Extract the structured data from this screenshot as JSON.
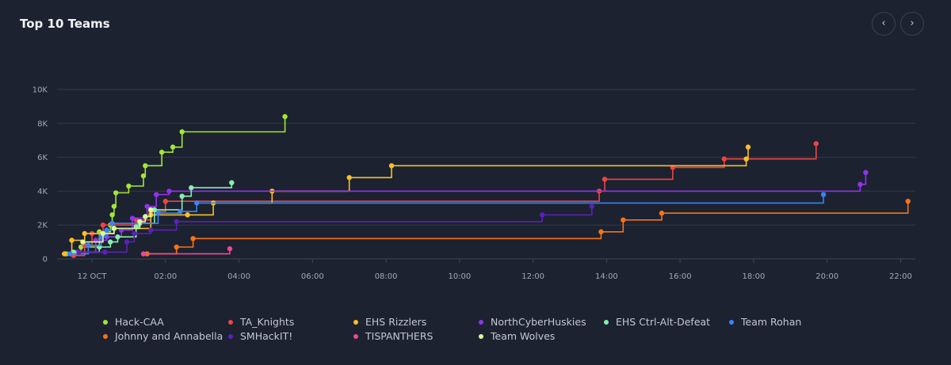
{
  "panel": {
    "title": "Top 10 Teams",
    "prev_icon": "chevron-left-icon",
    "next_icon": "chevron-right-icon",
    "prev_glyph": "‹",
    "next_glyph": "›"
  },
  "chart_data": {
    "type": "line",
    "title": "Top 10 Teams",
    "step": true,
    "grid": true,
    "legend_position": "bottom",
    "x_unit": "time of day (12 Oct)",
    "x_ticks": [
      {
        "value": 0,
        "label": "12 OCT"
      },
      {
        "value": 2,
        "label": "02:00"
      },
      {
        "value": 4,
        "label": "04:00"
      },
      {
        "value": 6,
        "label": "06:00"
      },
      {
        "value": 8,
        "label": "08:00"
      },
      {
        "value": 10,
        "label": "10:00"
      },
      {
        "value": 12,
        "label": "12:00"
      },
      {
        "value": 14,
        "label": "14:00"
      },
      {
        "value": 16,
        "label": "16:00"
      },
      {
        "value": 18,
        "label": "18:00"
      },
      {
        "value": 20,
        "label": "20:00"
      },
      {
        "value": 22,
        "label": "22:00"
      }
    ],
    "xlim": [
      -0.95,
      22.4
    ],
    "y_ticks": [
      {
        "value": 0,
        "label": "0"
      },
      {
        "value": 2000,
        "label": "2K"
      },
      {
        "value": 4000,
        "label": "4K"
      },
      {
        "value": 6000,
        "label": "6K"
      },
      {
        "value": 8000,
        "label": "8K"
      },
      {
        "value": 10000,
        "label": "10K"
      }
    ],
    "ylim": [
      0,
      10000
    ],
    "series": [
      {
        "name": "Hack-CAA",
        "color": "#a3e635",
        "points": [
          [
            -0.7,
            300
          ],
          [
            -0.3,
            700
          ],
          [
            0.2,
            1600
          ],
          [
            0.5,
            2000
          ],
          [
            0.55,
            2600
          ],
          [
            0.6,
            3100
          ],
          [
            0.65,
            3900
          ],
          [
            1.0,
            4300
          ],
          [
            1.4,
            4900
          ],
          [
            1.45,
            5500
          ],
          [
            1.9,
            6300
          ],
          [
            2.2,
            6600
          ],
          [
            2.45,
            7500
          ],
          [
            5.25,
            8400
          ]
        ]
      },
      {
        "name": "TA_Knights",
        "color": "#ef4444",
        "points": [
          [
            -0.5,
            200
          ],
          [
            -0.2,
            800
          ],
          [
            0.0,
            1500
          ],
          [
            0.3,
            2000
          ],
          [
            1.2,
            2300
          ],
          [
            1.6,
            2800
          ],
          [
            2.0,
            3400
          ],
          [
            13.8,
            4000
          ],
          [
            13.95,
            4700
          ],
          [
            15.8,
            5400
          ],
          [
            17.2,
            5900
          ],
          [
            19.7,
            6800
          ]
        ]
      },
      {
        "name": "EHS Rizzlers",
        "color": "#fbbf24",
        "points": [
          [
            -0.75,
            300
          ],
          [
            -0.55,
            1100
          ],
          [
            -0.2,
            1500
          ],
          [
            0.6,
            1800
          ],
          [
            1.6,
            2600
          ],
          [
            2.6,
            2600
          ],
          [
            3.3,
            3300
          ],
          [
            4.9,
            4000
          ],
          [
            7.0,
            4800
          ],
          [
            8.15,
            5500
          ],
          [
            17.8,
            5900
          ],
          [
            17.85,
            6600
          ]
        ]
      },
      {
        "name": "NorthCyberHuskies",
        "color": "#9333ea",
        "points": [
          [
            -0.4,
            400
          ],
          [
            0.1,
            1100
          ],
          [
            0.4,
            1300
          ],
          [
            0.8,
            1700
          ],
          [
            1.1,
            2400
          ],
          [
            1.5,
            3100
          ],
          [
            1.75,
            3800
          ],
          [
            2.1,
            4000
          ],
          [
            20.9,
            4400
          ],
          [
            21.05,
            5100
          ]
        ]
      },
      {
        "name": "EHS Ctrl-Alt-Defeat",
        "color": "#86efac",
        "points": [
          [
            -0.5,
            400
          ],
          [
            0.2,
            700
          ],
          [
            0.5,
            1000
          ],
          [
            0.7,
            1300
          ],
          [
            1.2,
            1900
          ],
          [
            1.3,
            2100
          ],
          [
            1.7,
            2900
          ],
          [
            2.45,
            3700
          ],
          [
            2.7,
            4200
          ],
          [
            3.8,
            4500
          ]
        ]
      },
      {
        "name": "Team Rohan",
        "color": "#3b82f6",
        "points": [
          [
            -0.6,
            300
          ],
          [
            -0.1,
            800
          ],
          [
            0.25,
            1300
          ],
          [
            0.4,
            1700
          ],
          [
            0.55,
            2100
          ],
          [
            1.8,
            2700
          ],
          [
            2.4,
            2800
          ],
          [
            2.85,
            3300
          ],
          [
            19.9,
            3800
          ]
        ]
      },
      {
        "name": "Johnny and Annabella",
        "color": "#f97316",
        "points": [
          [
            1.5,
            300
          ],
          [
            2.3,
            700
          ],
          [
            2.75,
            1200
          ],
          [
            13.85,
            1600
          ],
          [
            14.45,
            2300
          ],
          [
            15.5,
            2700
          ],
          [
            22.2,
            3400
          ]
        ]
      },
      {
        "name": "SMHackIT!",
        "color": "#5b21b6",
        "points": [
          [
            -0.35,
            400
          ],
          [
            0.35,
            400
          ],
          [
            0.95,
            1000
          ],
          [
            1.15,
            1500
          ],
          [
            1.6,
            1700
          ],
          [
            2.3,
            2200
          ],
          [
            12.25,
            2600
          ],
          [
            13.6,
            3100
          ]
        ]
      },
      {
        "name": "TISPANTHERS",
        "color": "#ec4899",
        "points": [
          [
            1.4,
            300
          ],
          [
            3.75,
            600
          ]
        ]
      },
      {
        "name": "Team Wolves",
        "color": "#d9f99d",
        "points": [
          [
            -0.25,
            1000
          ],
          [
            0.3,
            1500
          ],
          [
            0.6,
            1800
          ],
          [
            1.3,
            2200
          ],
          [
            1.45,
            2500
          ],
          [
            1.6,
            2900
          ]
        ]
      }
    ]
  }
}
